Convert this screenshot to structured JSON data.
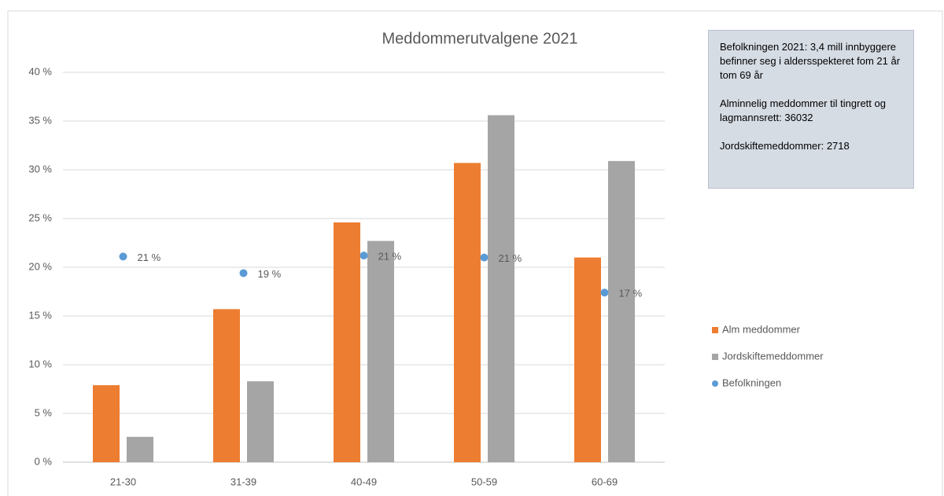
{
  "chart_data": {
    "type": "bar",
    "title": "Meddommerutvalgene 2021",
    "categories": [
      "21-30",
      "31-39",
      "40-49",
      "50-59",
      "60-69"
    ],
    "series": [
      {
        "name": "Alm meddommer",
        "color": "#ed7d31",
        "values": [
          7.9,
          15.7,
          24.6,
          30.7,
          21.0
        ]
      },
      {
        "name": "Jordskiftemeddommer",
        "color": "#a5a5a5",
        "values": [
          2.6,
          8.3,
          22.7,
          35.6,
          30.9
        ]
      },
      {
        "name": "Befolkningen",
        "type": "scatter",
        "color": "#5b9bd5",
        "values": [
          21.1,
          19.4,
          21.2,
          21.0,
          17.4
        ],
        "value_labels": [
          "21 %",
          "19 %",
          "21 %",
          "21 %",
          "17 %"
        ]
      }
    ],
    "ylim": [
      0,
      40
    ],
    "yticks": [
      {
        "value": 0,
        "label": "0 %"
      },
      {
        "value": 5,
        "label": "5 %"
      },
      {
        "value": 10,
        "label": "10 %"
      },
      {
        "value": 15,
        "label": "15 %"
      },
      {
        "value": 20,
        "label": "20 %"
      },
      {
        "value": 25,
        "label": "25 %"
      },
      {
        "value": 30,
        "label": "30 %"
      },
      {
        "value": 35,
        "label": "35 %"
      },
      {
        "value": 40,
        "label": "40 %"
      }
    ],
    "grid": true,
    "legend": "right",
    "textbox": [
      "Befolkningen 2021: 3,4 mill innbyggere befinner seg i aldersspekteret fom 21 år  tom 69 år",
      "Alminnelig meddommer til tingrett og lagmannsrett: 36032",
      "Jordskiftemeddommer: 2718"
    ]
  }
}
